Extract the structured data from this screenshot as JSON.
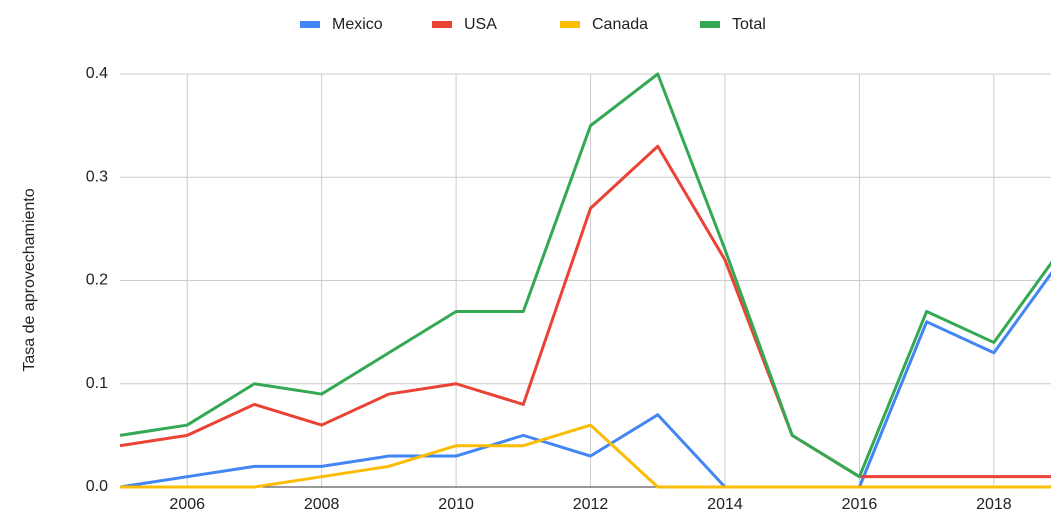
{
  "chart_data": {
    "type": "line",
    "y_label": "Tasa de aprovechamiento",
    "x": [
      2005,
      2006,
      2007,
      2008,
      2009,
      2010,
      2011,
      2012,
      2013,
      2014,
      2015,
      2016,
      2017,
      2018,
      2019
    ],
    "series": [
      {
        "name": "Mexico",
        "color": "#4285f4",
        "values": [
          0,
          0.01,
          0.02,
          0.02,
          0.03,
          0.03,
          0.05,
          0.03,
          0.07,
          0,
          0,
          0,
          0.16,
          0.13,
          0.22
        ]
      },
      {
        "name": "USA",
        "color": "#ea4335",
        "values": [
          0.04,
          0.05,
          0.08,
          0.06,
          0.09,
          0.1,
          0.08,
          0.27,
          0.33,
          0.22,
          0.05,
          0.01,
          0.01,
          0.01,
          0.01
        ]
      },
      {
        "name": "Canada",
        "color": "#fbbc04",
        "values": [
          0,
          0,
          0,
          0.01,
          0.02,
          0.04,
          0.04,
          0.06,
          0,
          0,
          0,
          0,
          0,
          0,
          0
        ]
      },
      {
        "name": "Total",
        "color": "#34a853",
        "values": [
          0.05,
          0.06,
          0.1,
          0.09,
          0.13,
          0.17,
          0.17,
          0.35,
          0.4,
          0.23,
          0.05,
          0.01,
          0.17,
          0.14,
          0.23
        ]
      }
    ],
    "xlim": [
      2005,
      2018.85
    ],
    "xticks": [
      2006,
      2008,
      2010,
      2012,
      2014,
      2016,
      2018
    ],
    "ylim": [
      0,
      0.4
    ],
    "yticks": [
      {
        "value": 0,
        "label": "0.0"
      },
      0.1,
      0.2,
      0.3,
      0.4
    ],
    "grid": true,
    "legend": "top"
  }
}
